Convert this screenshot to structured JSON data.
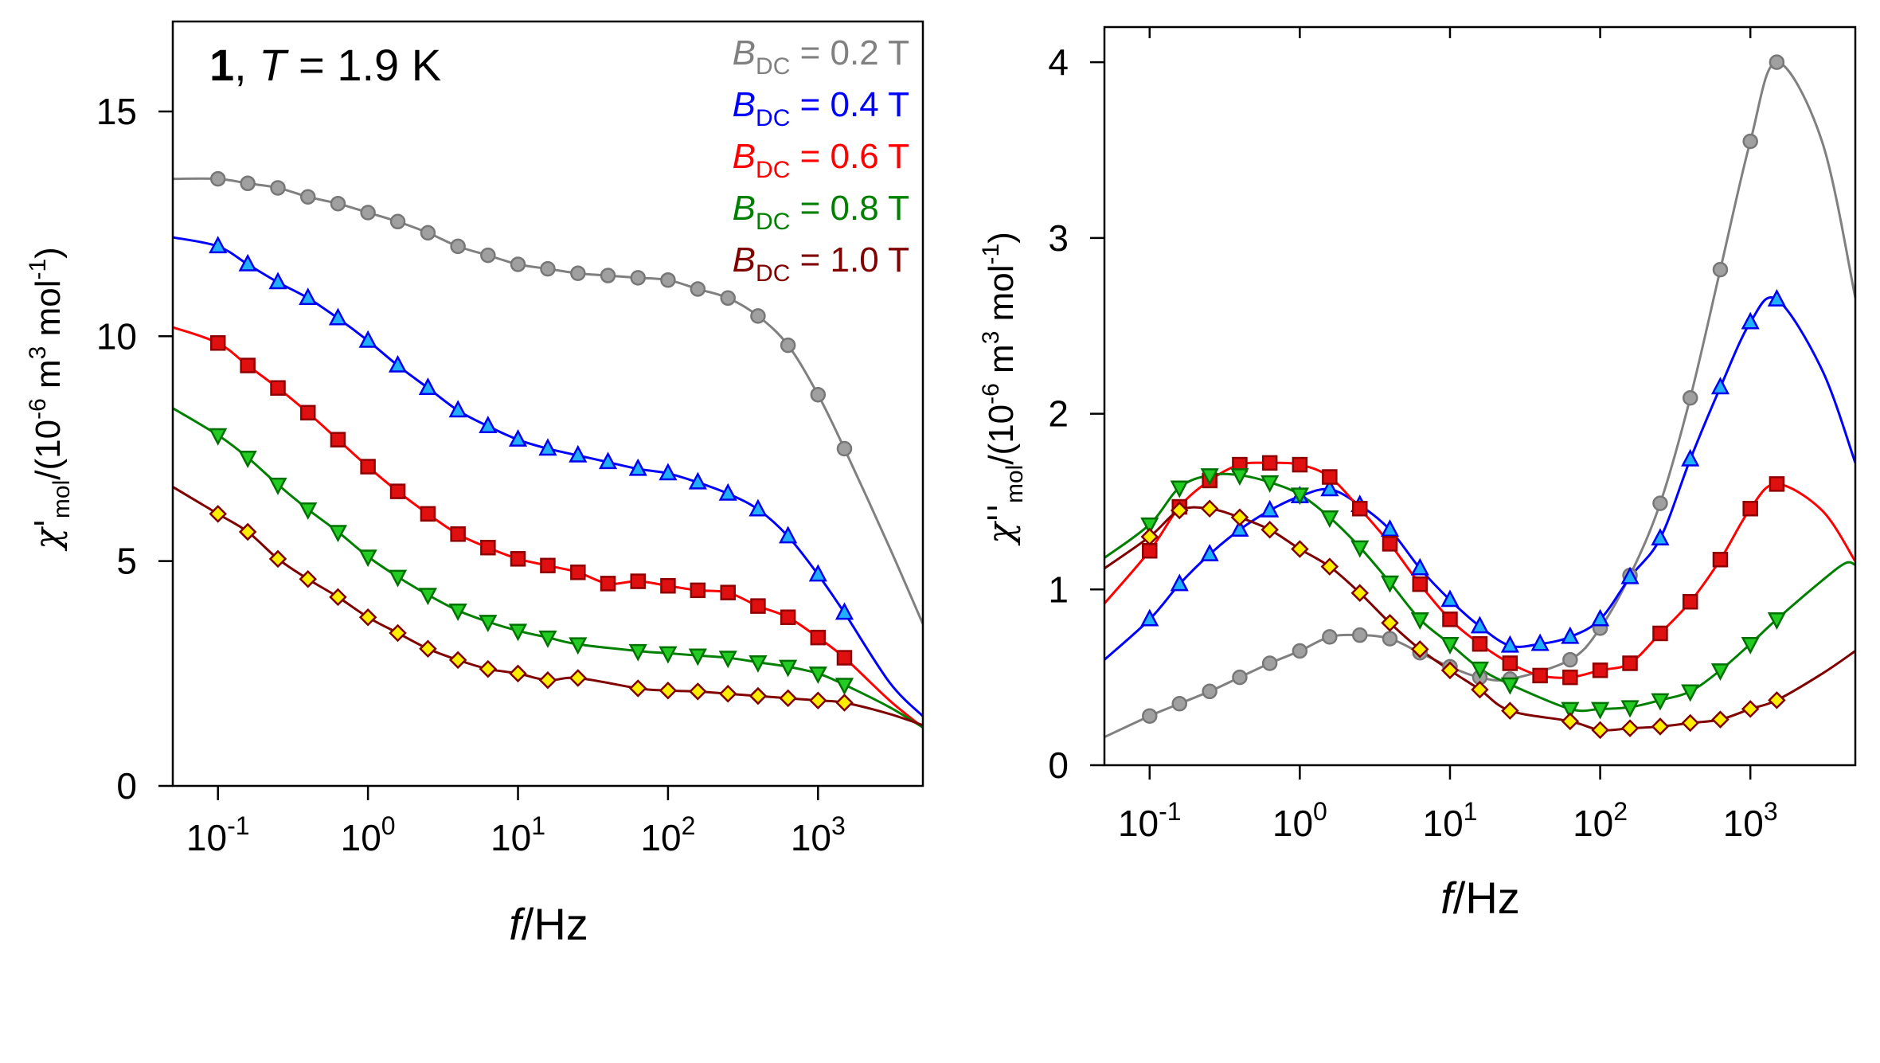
{
  "chart_data": [
    {
      "type": "scatter",
      "panel": "left",
      "title_bold": "1",
      "title_rest_pre": ", ",
      "title_T": "T",
      "title_rest": " = 1.9 K",
      "xlabel_italic": "f",
      "xlabel_rest": "/Hz",
      "ylabel": {
        "chi": "χ'",
        "sub": "mol",
        "mid": "/(10",
        "exp": "-6",
        "m": " m",
        "m_exp": "3",
        "mol": " mol",
        "mol_exp": "-1",
        "end": ")"
      },
      "xscale": "log",
      "xlim": [
        0.05,
        5000
      ],
      "ylim": [
        0,
        17
      ],
      "xticks": [
        {
          "base": "10",
          "exp": "-1",
          "value": 0.1
        },
        {
          "base": "10",
          "exp": "0",
          "value": 1
        },
        {
          "base": "10",
          "exp": "1",
          "value": 10
        },
        {
          "base": "10",
          "exp": "2",
          "value": 100
        },
        {
          "base": "10",
          "exp": "3",
          "value": 1000
        }
      ],
      "yticks": [
        {
          "label": "0",
          "value": 0
        },
        {
          "label": "5",
          "value": 5
        },
        {
          "label": "10",
          "value": 10
        },
        {
          "label": "15",
          "value": 15
        }
      ],
      "legend_placement": "top-right",
      "x": [
        0.1,
        0.158,
        0.251,
        0.398,
        0.631,
        1,
        1.58,
        2.51,
        3.98,
        6.31,
        10,
        15.8,
        25.1,
        39.8,
        63.1,
        100,
        158,
        251,
        398,
        631,
        1000,
        1500
      ],
      "series": [
        {
          "name": "0.2 T",
          "legend_B": "B",
          "legend_sub": "DC",
          "legend_val": " = 0.2 T",
          "color": "#808080",
          "marker": "circle",
          "fill": "#a0a0a0",
          "edge": "#777777",
          "values": [
            13.5,
            13.4,
            13.3,
            13.1,
            12.95,
            12.75,
            12.55,
            12.3,
            12.0,
            11.8,
            11.6,
            11.5,
            11.4,
            11.35,
            11.3,
            11.25,
            11.05,
            10.85,
            10.45,
            9.8,
            8.7,
            7.5
          ],
          "fit_extra": [
            [
              0.05,
              13.5
            ],
            [
              3000,
              5.3
            ],
            [
              5000,
              3.6
            ]
          ]
        },
        {
          "name": "0.4 T",
          "legend_B": "B",
          "legend_sub": "DC",
          "legend_val": " = 0.4 T",
          "color": "#0000ff",
          "marker": "triangle-up",
          "fill": "#20b0ff",
          "edge": "#0000ee",
          "values": [
            12.0,
            11.6,
            11.2,
            10.85,
            10.4,
            9.9,
            9.35,
            8.85,
            8.35,
            8.0,
            7.7,
            7.5,
            7.35,
            7.2,
            7.05,
            6.95,
            6.75,
            6.5,
            6.15,
            5.55,
            4.7,
            3.85
          ],
          "fit_extra": [
            [
              0.05,
              12.2
            ],
            [
              3000,
              2.3
            ],
            [
              5000,
              1.55
            ]
          ]
        },
        {
          "name": "0.6 T",
          "legend_B": "B",
          "legend_sub": "DC",
          "legend_val": " = 0.6 T",
          "color": "#ff0000",
          "marker": "square",
          "fill": "#e01010",
          "edge": "#900000",
          "values": [
            9.85,
            9.35,
            8.85,
            8.3,
            7.7,
            7.1,
            6.55,
            6.05,
            5.6,
            5.3,
            5.05,
            4.9,
            4.75,
            4.5,
            4.55,
            4.45,
            4.35,
            4.3,
            4.0,
            3.75,
            3.3,
            2.85
          ],
          "fit_extra": [
            [
              0.05,
              10.2
            ],
            [
              3000,
              1.9
            ],
            [
              5000,
              1.3
            ]
          ]
        },
        {
          "name": "0.8 T",
          "legend_B": "B",
          "legend_sub": "DC",
          "legend_val": " = 0.8 T",
          "color": "#008000",
          "marker": "triangle-down",
          "fill": "#22cc22",
          "edge": "#007000",
          "values": [
            7.8,
            7.3,
            6.7,
            6.15,
            5.65,
            5.1,
            4.65,
            4.25,
            3.9,
            3.65,
            3.45,
            3.3,
            3.15,
            null,
            3.0,
            2.95,
            2.9,
            2.85,
            2.75,
            2.65,
            2.5,
            2.25
          ],
          "fit_extra": [
            [
              0.05,
              8.4
            ],
            [
              3000,
              1.75
            ],
            [
              5000,
              1.3
            ]
          ]
        },
        {
          "name": "1.0 T",
          "legend_B": "B",
          "legend_sub": "DC",
          "legend_val": " = 1.0 T",
          "color": "#800000",
          "marker": "diamond",
          "fill": "#ffee00",
          "edge": "#800000",
          "values": [
            6.05,
            5.65,
            5.05,
            4.6,
            4.2,
            3.75,
            3.4,
            3.05,
            2.8,
            2.6,
            2.5,
            2.35,
            2.4,
            null,
            2.17,
            2.12,
            2.1,
            2.05,
            2.0,
            1.95,
            1.9,
            1.85
          ],
          "fit_extra": [
            [
              0.05,
              6.65
            ],
            [
              3000,
              1.6
            ],
            [
              5000,
              1.35
            ]
          ]
        }
      ]
    },
    {
      "type": "scatter",
      "panel": "right",
      "xlabel_italic": "f",
      "xlabel_rest": "/Hz",
      "ylabel": {
        "chi": "χ''",
        "sub": "mol",
        "mid": "/(10",
        "exp": "-6",
        "m": " m",
        "m_exp": "3",
        "mol": " mol",
        "mol_exp": "-1",
        "end": ")"
      },
      "xscale": "log",
      "xlim": [
        0.05,
        5000
      ],
      "ylim": [
        0,
        4.2
      ],
      "xticks": [
        {
          "base": "10",
          "exp": "-1",
          "value": 0.1
        },
        {
          "base": "10",
          "exp": "0",
          "value": 1
        },
        {
          "base": "10",
          "exp": "1",
          "value": 10
        },
        {
          "base": "10",
          "exp": "2",
          "value": 100
        },
        {
          "base": "10",
          "exp": "3",
          "value": 1000
        }
      ],
      "yticks": [
        {
          "label": "0",
          "value": 0
        },
        {
          "label": "1",
          "value": 1
        },
        {
          "label": "2",
          "value": 2
        },
        {
          "label": "3",
          "value": 3
        },
        {
          "label": "4",
          "value": 4
        }
      ],
      "x": [
        0.1,
        0.158,
        0.251,
        0.398,
        0.631,
        1,
        1.58,
        2.51,
        3.98,
        6.31,
        10,
        15.8,
        25.1,
        39.8,
        63.1,
        100,
        158,
        251,
        398,
        631,
        1000,
        1500
      ],
      "series": [
        {
          "name": "0.2 T",
          "color": "#808080",
          "marker": "circle",
          "fill": "#a0a0a0",
          "edge": "#777777",
          "values": [
            0.28,
            0.35,
            0.42,
            0.5,
            0.58,
            0.65,
            0.73,
            0.74,
            0.72,
            0.64,
            0.56,
            0.5,
            0.49,
            null,
            0.6,
            0.78,
            1.08,
            1.49,
            2.09,
            2.82,
            3.55,
            4.0
          ],
          "fit_extra": [
            [
              0.05,
              0.16
            ],
            [
              3000,
              3.55
            ],
            [
              5000,
              2.66
            ]
          ]
        },
        {
          "name": "0.4 T",
          "color": "#0000ff",
          "marker": "triangle-up",
          "fill": "#20b0ff",
          "edge": "#0000ee",
          "values": [
            0.83,
            1.03,
            1.2,
            1.34,
            1.45,
            1.53,
            1.57,
            1.48,
            1.34,
            1.12,
            0.94,
            0.79,
            0.68,
            0.69,
            0.73,
            0.83,
            1.07,
            1.29,
            1.74,
            2.15,
            2.52,
            2.65
          ],
          "fit_extra": [
            [
              0.05,
              0.6
            ],
            [
              3000,
              2.25
            ],
            [
              5000,
              1.72
            ]
          ]
        },
        {
          "name": "0.6 T",
          "color": "#ff0000",
          "marker": "square",
          "fill": "#e01010",
          "edge": "#900000",
          "values": [
            1.22,
            1.47,
            1.62,
            1.71,
            1.72,
            1.71,
            1.64,
            1.46,
            1.26,
            1.03,
            0.83,
            0.69,
            0.58,
            0.51,
            0.5,
            0.54,
            0.58,
            0.75,
            0.93,
            1.17,
            1.46,
            1.6
          ],
          "fit_extra": [
            [
              0.05,
              0.92
            ],
            [
              3000,
              1.45
            ],
            [
              5000,
              1.16
            ]
          ]
        },
        {
          "name": "0.8 T",
          "color": "#008000",
          "marker": "triangle-down",
          "fill": "#22cc22",
          "edge": "#007000",
          "values": [
            1.37,
            1.58,
            1.65,
            1.65,
            1.61,
            1.54,
            1.41,
            1.24,
            1.04,
            0.83,
            0.69,
            0.55,
            0.46,
            null,
            0.32,
            0.32,
            0.33,
            0.37,
            0.42,
            0.54,
            0.69,
            0.83
          ],
          "fit_extra": [
            [
              0.05,
              1.18
            ],
            [
              3000,
              1.05
            ],
            [
              4300,
              1.15
            ],
            [
              5000,
              1.14
            ]
          ]
        },
        {
          "name": "1.0 T",
          "color": "#800000",
          "marker": "diamond",
          "fill": "#ffee00",
          "edge": "#800000",
          "values": [
            1.3,
            1.45,
            1.46,
            1.41,
            1.34,
            1.23,
            1.13,
            0.98,
            0.81,
            0.66,
            0.54,
            0.43,
            0.31,
            null,
            0.25,
            0.2,
            0.21,
            0.22,
            0.24,
            0.26,
            0.32,
            0.37
          ],
          "fit_extra": [
            [
              0.05,
              1.12
            ],
            [
              3000,
              0.52
            ],
            [
              5000,
              0.65
            ]
          ]
        }
      ]
    }
  ]
}
